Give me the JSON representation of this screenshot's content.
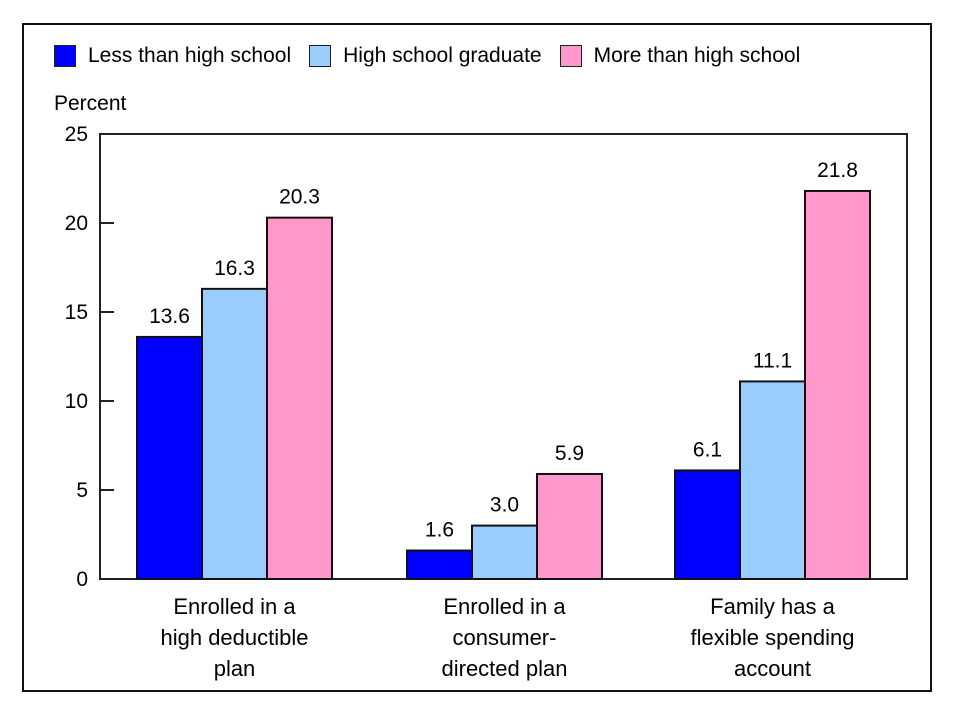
{
  "chart_data": {
    "type": "bar",
    "title": "",
    "xlabel": "",
    "ylabel": "Percent",
    "ylim": [
      0,
      25
    ],
    "yticks": [
      0,
      5,
      10,
      15,
      20,
      25
    ],
    "grid": false,
    "legend_position": "top",
    "categories": [
      [
        "Enrolled in a",
        "high deductible",
        "plan"
      ],
      [
        "Enrolled in a",
        "consumer-",
        "directed plan"
      ],
      [
        "Family has a",
        "flexible spending",
        "account"
      ]
    ],
    "series": [
      {
        "name": "Less than high school",
        "color": "#0000ff",
        "values": [
          13.6,
          1.6,
          6.1
        ],
        "labels": [
          "13.6",
          "1.6",
          "6.1"
        ]
      },
      {
        "name": "High school graduate",
        "color": "#99ccff",
        "values": [
          16.3,
          3.0,
          11.1
        ],
        "labels": [
          "16.3",
          "3.0",
          "11.1"
        ]
      },
      {
        "name": "More than high school",
        "color": "#ff99cc",
        "values": [
          20.3,
          5.9,
          21.8
        ],
        "labels": [
          "20.3",
          "5.9",
          "21.8"
        ]
      }
    ]
  }
}
